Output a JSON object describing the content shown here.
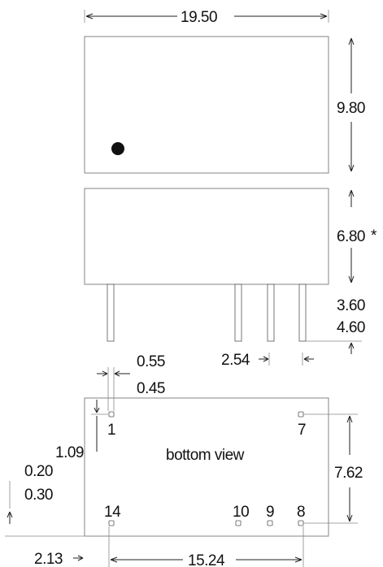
{
  "top_view": {
    "width_label": "19.50",
    "height_label": "9.80"
  },
  "side_view": {
    "height_label": "6.80",
    "asterisk": "*",
    "pin_length_min": "3.60",
    "pin_length_max": "4.60",
    "pin_pitch": "2.54"
  },
  "bottom_view": {
    "title": "bottom view",
    "pin_width_a": "0.55",
    "pin_width_b": "0.45",
    "offset_left": "1.09",
    "offset_b_a": "0.20",
    "offset_b_b": "0.30",
    "row_spacing": "7.62",
    "edge_offset": "2.13",
    "span": "15.24",
    "pins": {
      "p1": "1",
      "p7": "7",
      "p14": "14",
      "p10": "10",
      "p9": "9",
      "p8": "8"
    }
  }
}
